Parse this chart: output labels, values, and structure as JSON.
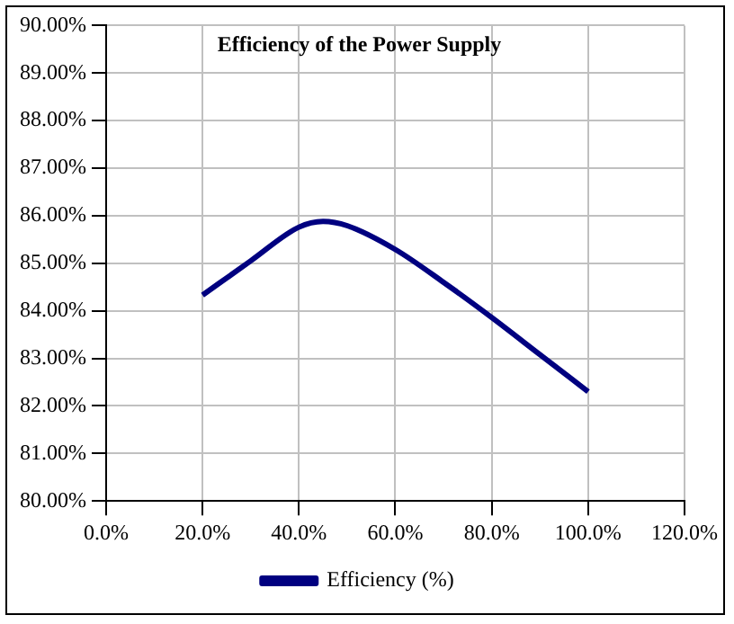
{
  "chart_data": {
    "type": "line",
    "title": "Efficiency of the Power Supply",
    "x": [
      20,
      30,
      40,
      45,
      50,
      60,
      70,
      80,
      90,
      100
    ],
    "series": [
      {
        "name": "Efficiency (%)",
        "color": "#000080",
        "values": [
          84.33,
          85.05,
          85.76,
          85.88,
          85.79,
          85.29,
          84.6,
          83.86,
          83.08,
          82.3
        ]
      }
    ],
    "xlim": [
      0,
      120
    ],
    "xticks": [
      {
        "value": 0,
        "label": "0.0%"
      },
      {
        "value": 20,
        "label": "20.0%"
      },
      {
        "value": 40,
        "label": "40.0%"
      },
      {
        "value": 60,
        "label": "60.0%"
      },
      {
        "value": 80,
        "label": "80.0%"
      },
      {
        "value": 100,
        "label": "100.0%"
      },
      {
        "value": 120,
        "label": "120.0%"
      }
    ],
    "ylim": [
      80,
      90
    ],
    "yticks": [
      {
        "value": 80,
        "label": "80.00%"
      },
      {
        "value": 81,
        "label": "81.00%"
      },
      {
        "value": 82,
        "label": "82.00%"
      },
      {
        "value": 83,
        "label": "83.00%"
      },
      {
        "value": 84,
        "label": "84.00%"
      },
      {
        "value": 85,
        "label": "85.00%"
      },
      {
        "value": 86,
        "label": "86.00%"
      },
      {
        "value": 87,
        "label": "87.00%"
      },
      {
        "value": 88,
        "label": "88.00%"
      },
      {
        "value": 89,
        "label": "89.00%"
      },
      {
        "value": 90,
        "label": "90.00%"
      }
    ],
    "grid": true,
    "legend": "bottom",
    "marker": "none",
    "line_style": "solid"
  }
}
